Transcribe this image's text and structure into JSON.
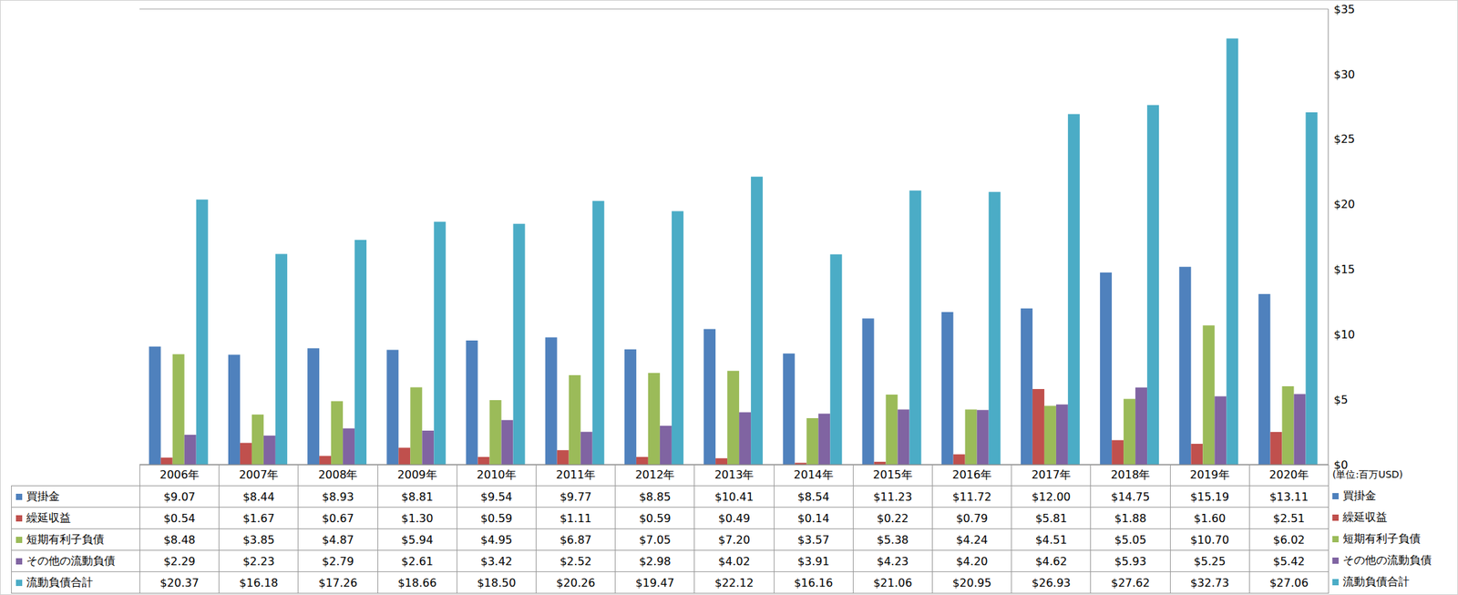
{
  "chart_data": {
    "type": "bar",
    "ylabel": "(単位:百万USD)",
    "categories": [
      "2006年",
      "2007年",
      "2008年",
      "2009年",
      "2010年",
      "2011年",
      "2012年",
      "2013年",
      "2014年",
      "2015年",
      "2016年",
      "2017年",
      "2018年",
      "2019年",
      "2020年"
    ],
    "series": [
      {
        "name": "買掛金",
        "color": "#4f81bd",
        "values": [
          9.07,
          8.44,
          8.93,
          8.81,
          9.54,
          9.77,
          8.85,
          10.41,
          8.54,
          11.23,
          11.72,
          12.0,
          14.75,
          15.19,
          13.11
        ],
        "value_labels": [
          "$9.07",
          "$8.44",
          "$8.93",
          "$8.81",
          "$9.54",
          "$9.77",
          "$8.85",
          "$10.41",
          "$8.54",
          "$11.23",
          "$11.72",
          "$12.00",
          "$14.75",
          "$15.19",
          "$13.11"
        ]
      },
      {
        "name": "繰延収益",
        "color": "#c0504d",
        "values": [
          0.54,
          1.67,
          0.67,
          1.3,
          0.59,
          1.11,
          0.59,
          0.49,
          0.14,
          0.22,
          0.79,
          5.81,
          1.88,
          1.6,
          2.51
        ],
        "value_labels": [
          "$0.54",
          "$1.67",
          "$0.67",
          "$1.30",
          "$0.59",
          "$1.11",
          "$0.59",
          "$0.49",
          "$0.14",
          "$0.22",
          "$0.79",
          "$5.81",
          "$1.88",
          "$1.60",
          "$2.51"
        ]
      },
      {
        "name": "短期有利子負債",
        "color": "#9bbb59",
        "values": [
          8.48,
          3.85,
          4.87,
          5.94,
          4.95,
          6.87,
          7.05,
          7.2,
          3.57,
          5.38,
          4.24,
          4.51,
          5.05,
          10.7,
          6.02
        ],
        "value_labels": [
          "$8.48",
          "$3.85",
          "$4.87",
          "$5.94",
          "$4.95",
          "$6.87",
          "$7.05",
          "$7.20",
          "$3.57",
          "$5.38",
          "$4.24",
          "$4.51",
          "$5.05",
          "$10.70",
          "$6.02"
        ]
      },
      {
        "name": "その他の流動負債",
        "color": "#8064a2",
        "values": [
          2.29,
          2.23,
          2.79,
          2.61,
          3.42,
          2.52,
          2.98,
          4.02,
          3.91,
          4.23,
          4.2,
          4.62,
          5.93,
          5.25,
          5.42
        ],
        "value_labels": [
          "$2.29",
          "$2.23",
          "$2.79",
          "$2.61",
          "$3.42",
          "$2.52",
          "$2.98",
          "$4.02",
          "$3.91",
          "$4.23",
          "$4.20",
          "$4.62",
          "$5.93",
          "$5.25",
          "$5.42"
        ]
      },
      {
        "name": "流動負債合計",
        "color": "#4bacc6",
        "values": [
          20.37,
          16.18,
          17.26,
          18.66,
          18.5,
          20.26,
          19.47,
          22.12,
          16.16,
          21.06,
          20.95,
          26.93,
          27.62,
          32.73,
          27.06
        ],
        "value_labels": [
          "$20.37",
          "$16.18",
          "$17.26",
          "$18.66",
          "$18.50",
          "$20.26",
          "$19.47",
          "$22.12",
          "$16.16",
          "$21.06",
          "$20.95",
          "$26.93",
          "$27.62",
          "$32.73",
          "$27.06"
        ]
      }
    ],
    "ylim": [
      0,
      35
    ],
    "yticks": [
      {
        "value": 0,
        "label": "$0"
      },
      {
        "value": 5,
        "label": "$5"
      },
      {
        "value": 10,
        "label": "$10"
      },
      {
        "value": 15,
        "label": "$15"
      },
      {
        "value": 20,
        "label": "$20"
      },
      {
        "value": 25,
        "label": "$25"
      },
      {
        "value": 30,
        "label": "$30"
      },
      {
        "value": 35,
        "label": "$35"
      }
    ],
    "grid": true
  }
}
